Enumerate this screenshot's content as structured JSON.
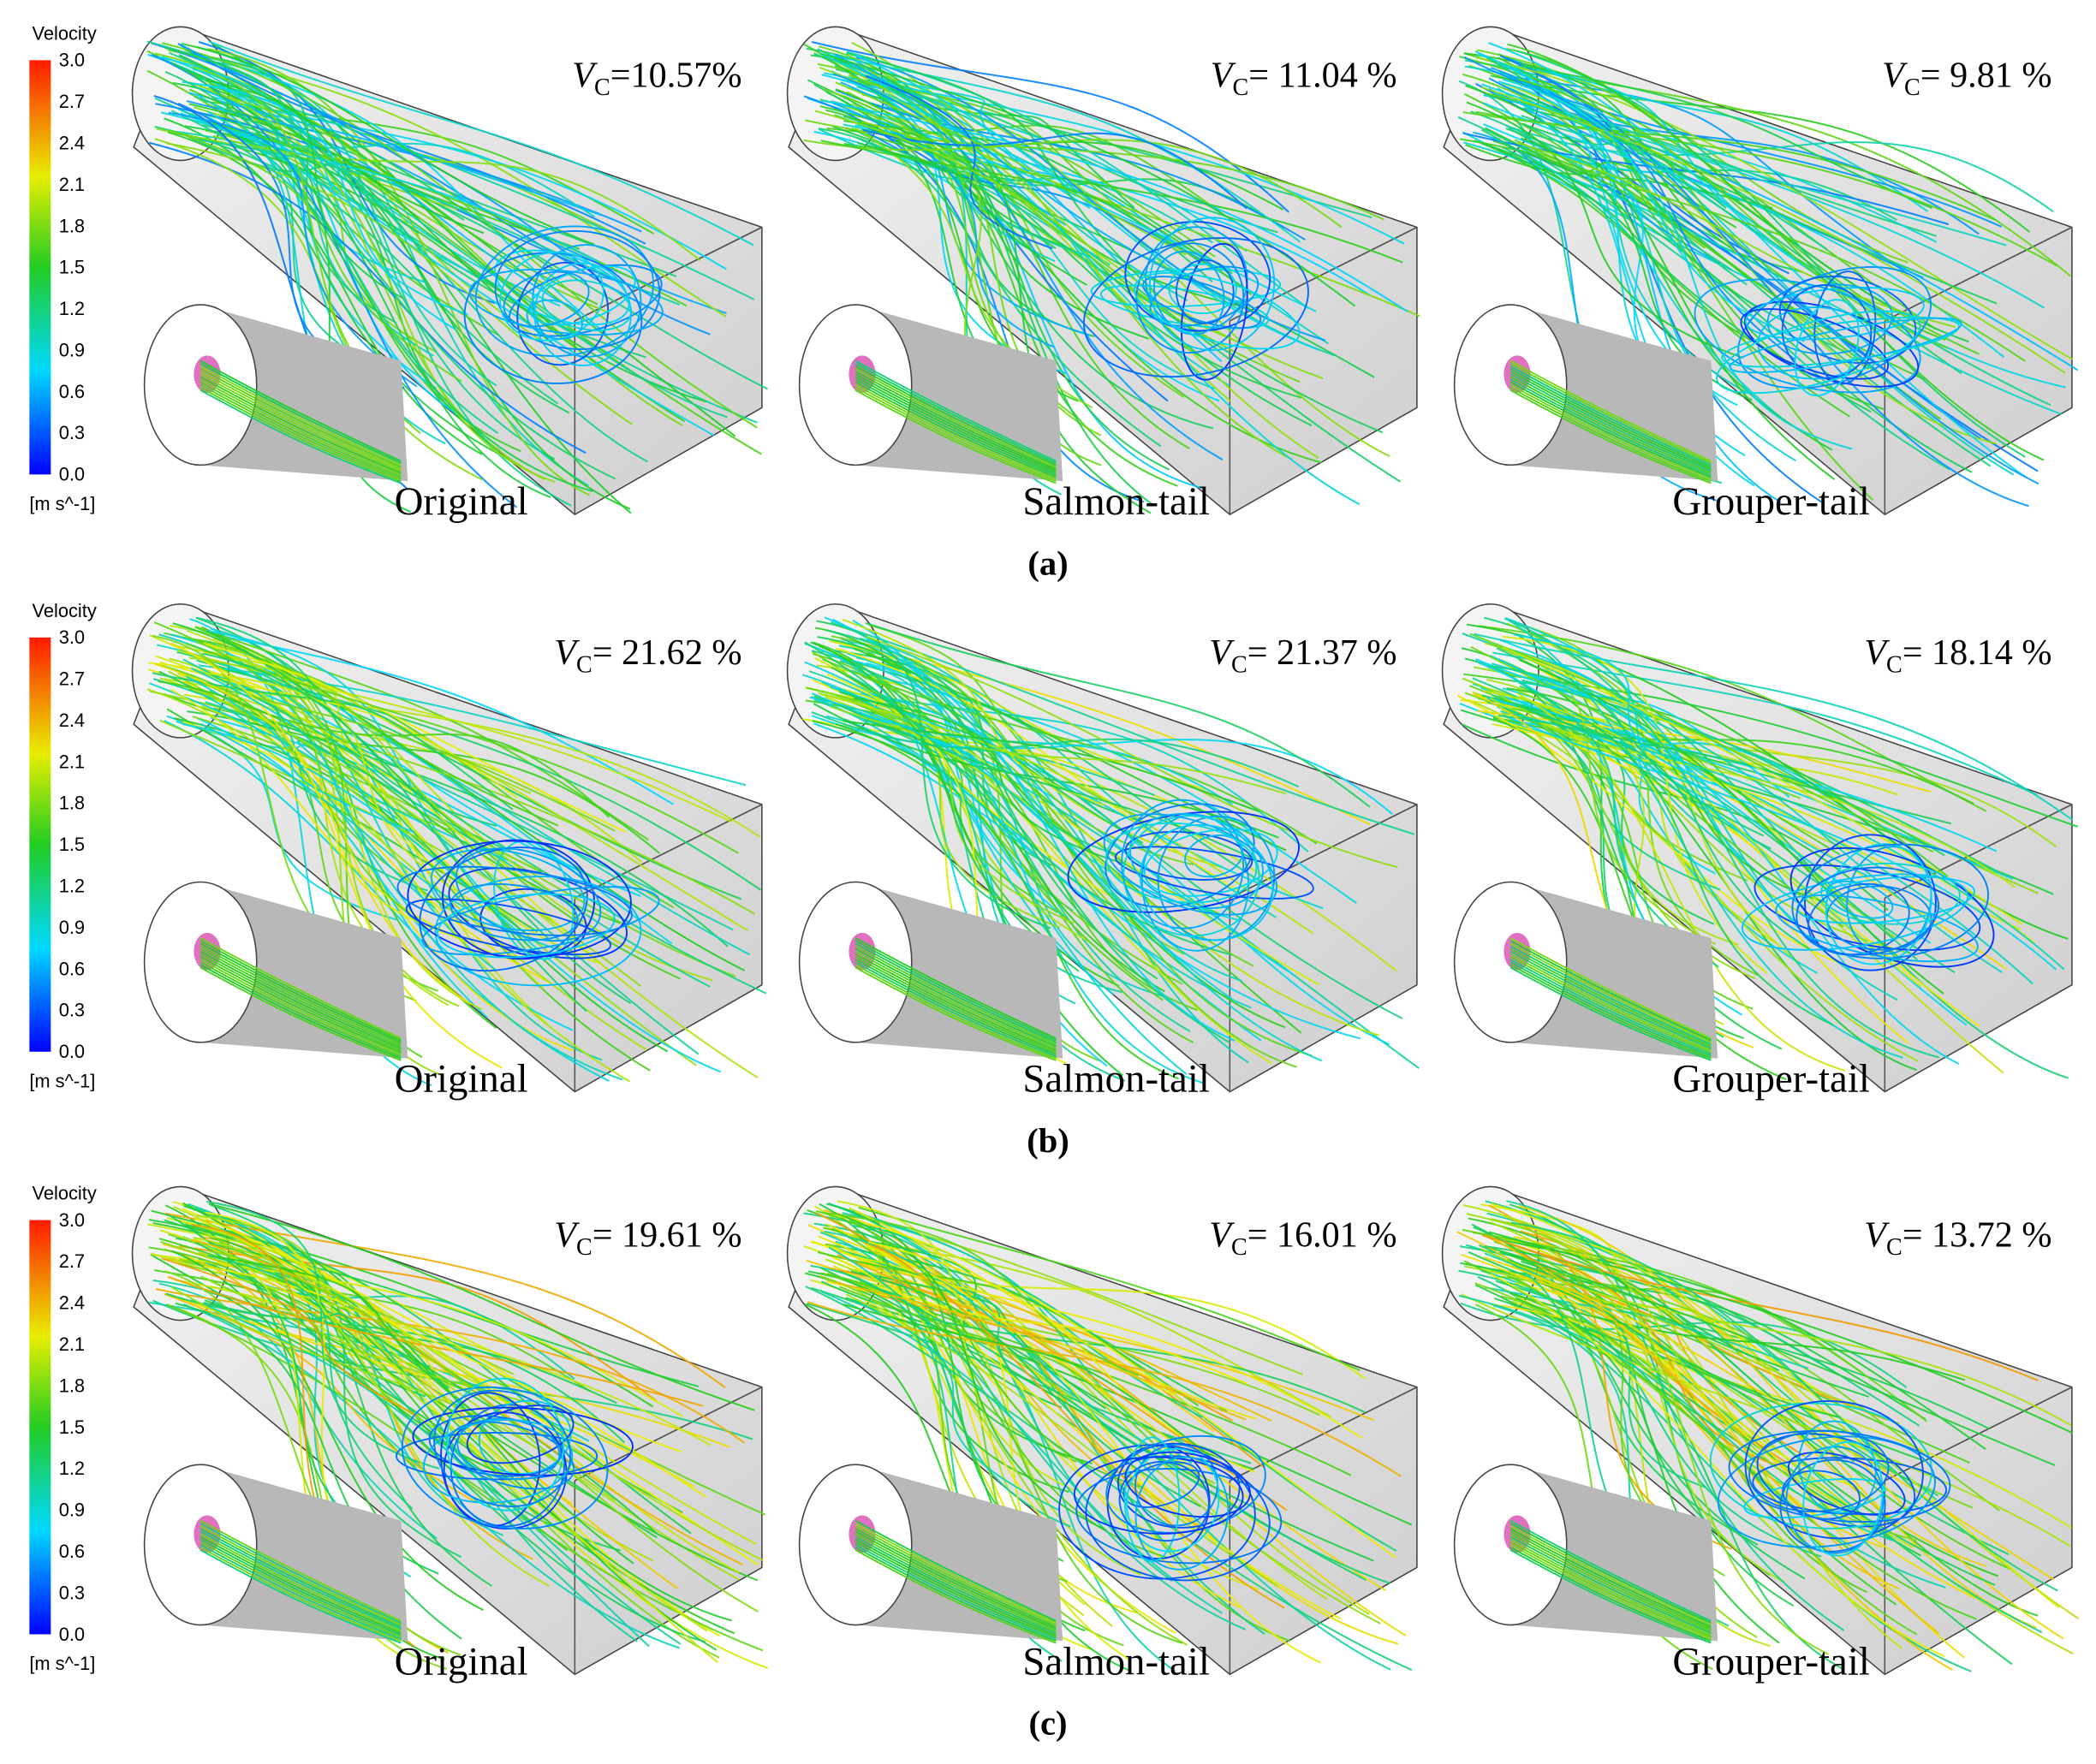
{
  "rows": [
    {
      "caption": "(a)",
      "legend": {
        "title": "Velocity",
        "ticks": [
          "3.0",
          "2.7",
          "2.4",
          "2.1",
          "1.8",
          "1.5",
          "1.2",
          "0.9",
          "0.6",
          "0.3",
          "0.0"
        ],
        "unit": "[m s^-1]"
      },
      "panels": [
        {
          "symbol": "V",
          "subscript": "C",
          "value": "=10.57%",
          "name": "Original"
        },
        {
          "symbol": "V",
          "subscript": "C",
          "value": "= 11.04 %",
          "name": "Salmon-tail"
        },
        {
          "symbol": "V",
          "subscript": "C",
          "value": "= 9.81 %",
          "name": "Grouper-tail"
        }
      ]
    },
    {
      "caption": "(b)",
      "legend": {
        "title": "Velocity",
        "ticks": [
          "3.0",
          "2.7",
          "2.4",
          "2.1",
          "1.8",
          "1.5",
          "1.2",
          "0.9",
          "0.6",
          "0.3",
          "0.0"
        ],
        "unit": "[m s^-1]"
      },
      "panels": [
        {
          "symbol": "V",
          "subscript": "C",
          "value": "= 21.62 %",
          "name": "Original"
        },
        {
          "symbol": "V",
          "subscript": "C",
          "value": "= 21.37 %",
          "name": "Salmon-tail"
        },
        {
          "symbol": "V",
          "subscript": "C",
          "value": "= 18.14 %",
          "name": "Grouper-tail"
        }
      ]
    },
    {
      "caption": "(c)",
      "legend": {
        "title": "Velocity",
        "ticks": [
          "3.0",
          "2.7",
          "2.4",
          "2.1",
          "1.8",
          "1.5",
          "1.2",
          "0.9",
          "0.6",
          "0.3",
          "0.0"
        ],
        "unit": "[m s^-1]"
      },
      "panels": [
        {
          "symbol": "V",
          "subscript": "C",
          "value": "= 19.61 %",
          "name": "Original"
        },
        {
          "symbol": "V",
          "subscript": "C",
          "value": "= 16.01 %",
          "name": "Salmon-tail"
        },
        {
          "symbol": "V",
          "subscript": "C",
          "value": "= 13.72 %",
          "name": "Grouper-tail"
        }
      ]
    }
  ]
}
